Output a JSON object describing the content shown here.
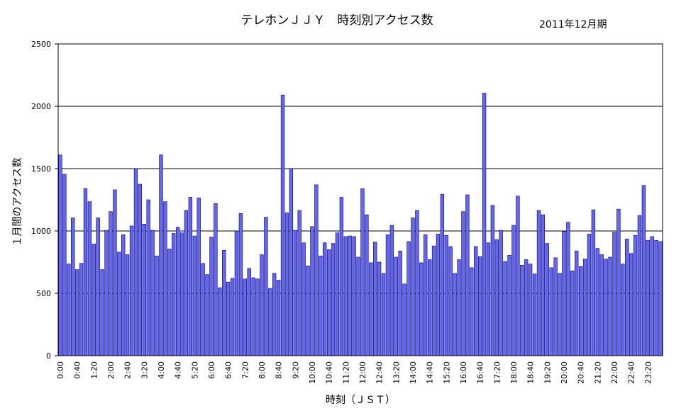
{
  "chart_data": {
    "type": "bar",
    "title": "テレホンＪＪＹ　時刻別アクセス数",
    "subtitle": "2011年12月期",
    "xlabel": "時刻（ＪＳＴ）",
    "ylabel": "１月間のアクセス数",
    "ylim": [
      0,
      2500
    ],
    "yticks": [
      0,
      500,
      1000,
      1500,
      2000,
      2500
    ],
    "grid": true,
    "legend": "none",
    "bar_color": "#6666ee",
    "bar_edge_color": "#000066",
    "categories": [
      "0:00",
      "0:10",
      "0:20",
      "0:30",
      "0:40",
      "0:50",
      "1:00",
      "1:10",
      "1:20",
      "1:30",
      "1:40",
      "1:50",
      "2:00",
      "2:10",
      "2:20",
      "2:30",
      "2:40",
      "2:50",
      "3:00",
      "3:10",
      "3:20",
      "3:30",
      "3:40",
      "3:50",
      "4:00",
      "4:10",
      "4:20",
      "4:30",
      "4:40",
      "4:50",
      "5:00",
      "5:10",
      "5:20",
      "5:30",
      "5:40",
      "5:50",
      "6:00",
      "6:10",
      "6:20",
      "6:30",
      "6:40",
      "6:50",
      "7:00",
      "7:10",
      "7:20",
      "7:30",
      "7:40",
      "7:50",
      "8:00",
      "8:10",
      "8:20",
      "8:30",
      "8:40",
      "8:50",
      "9:00",
      "9:10",
      "9:20",
      "9:30",
      "9:40",
      "9:50",
      "10:00",
      "10:10",
      "10:20",
      "10:30",
      "10:40",
      "10:50",
      "11:00",
      "11:10",
      "11:20",
      "11:30",
      "11:40",
      "11:50",
      "12:00",
      "12:10",
      "12:20",
      "12:30",
      "12:40",
      "12:50",
      "13:00",
      "13:10",
      "13:20",
      "13:30",
      "13:40",
      "13:50",
      "14:00",
      "14:10",
      "14:20",
      "14:30",
      "14:40",
      "14:50",
      "15:00",
      "15:10",
      "15:20",
      "15:30",
      "15:40",
      "15:50",
      "16:00",
      "16:10",
      "16:20",
      "16:30",
      "16:40",
      "16:50",
      "17:00",
      "17:10",
      "17:20",
      "17:30",
      "17:40",
      "17:50",
      "18:00",
      "18:10",
      "18:20",
      "18:30",
      "18:40",
      "18:50",
      "19:00",
      "19:10",
      "19:20",
      "19:30",
      "19:40",
      "19:50",
      "20:00",
      "20:10",
      "20:20",
      "20:30",
      "20:40",
      "20:50",
      "21:00",
      "21:10",
      "21:20",
      "21:30",
      "21:40",
      "21:50",
      "22:00",
      "22:10",
      "22:20",
      "22:30",
      "22:40",
      "22:50",
      "23:00",
      "23:10",
      "23:20",
      "23:30",
      "23:40",
      "23:50"
    ],
    "visible_tick_labels": [
      "0:00",
      "0:40",
      "1:20",
      "2:00",
      "2:40",
      "3:20",
      "4:00",
      "4:40",
      "5:20",
      "6:00",
      "6:40",
      "7:20",
      "8:00",
      "8:40",
      "9:20",
      "10:00",
      "10:40",
      "11:20",
      "12:00",
      "12:40",
      "13:20",
      "14:00",
      "14:40",
      "15:20",
      "16:00",
      "16:40",
      "17:20",
      "18:00",
      "18:40",
      "19:20",
      "20:00",
      "20:40",
      "21:20",
      "22:00",
      "22:40",
      "23:20"
    ],
    "values": [
      1610,
      1455,
      735,
      1105,
      690,
      740,
      1340,
      1235,
      895,
      1105,
      690,
      1005,
      1155,
      1330,
      830,
      970,
      810,
      1040,
      1500,
      1375,
      1055,
      1250,
      1005,
      800,
      1610,
      1235,
      855,
      980,
      1030,
      985,
      1165,
      1270,
      960,
      1265,
      740,
      650,
      950,
      1220,
      545,
      845,
      590,
      620,
      1000,
      1140,
      615,
      700,
      625,
      615,
      810,
      1110,
      540,
      660,
      605,
      2090,
      1145,
      1500,
      1005,
      1165,
      905,
      720,
      1035,
      1370,
      800,
      905,
      850,
      900,
      985,
      1270,
      955,
      960,
      955,
      790,
      1340,
      1130,
      745,
      910,
      750,
      660,
      970,
      1045,
      790,
      840,
      575,
      915,
      1105,
      1165,
      745,
      970,
      770,
      880,
      975,
      1295,
      965,
      875,
      660,
      770,
      1155,
      1290,
      705,
      875,
      795,
      2105,
      905,
      1205,
      930,
      1005,
      755,
      805,
      1045,
      1280,
      725,
      770,
      735,
      655,
      1165,
      1130,
      900,
      705,
      785,
      660,
      995,
      1070,
      680,
      840,
      715,
      775,
      975,
      1170,
      860,
      810,
      775,
      790,
      990,
      1175,
      735,
      935,
      820,
      965,
      1125,
      1365,
      925,
      955,
      925,
      915
    ]
  }
}
